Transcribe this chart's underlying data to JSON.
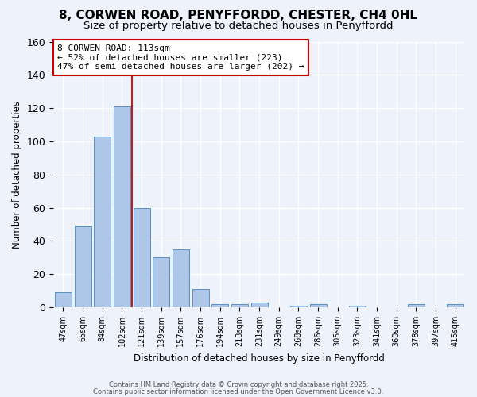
{
  "title1": "8, CORWEN ROAD, PENYFFORDD, CHESTER, CH4 0HL",
  "title2": "Size of property relative to detached houses in Penyffordd",
  "xlabel": "Distribution of detached houses by size in Penyffordd",
  "ylabel": "Number of detached properties",
  "bin_labels": [
    "47sqm",
    "65sqm",
    "84sqm",
    "102sqm",
    "121sqm",
    "139sqm",
    "157sqm",
    "176sqm",
    "194sqm",
    "213sqm",
    "231sqm",
    "249sqm",
    "268sqm",
    "286sqm",
    "305sqm",
    "323sqm",
    "341sqm",
    "360sqm",
    "378sqm",
    "397sqm",
    "415sqm"
  ],
  "bar_heights": [
    9,
    49,
    103,
    121,
    60,
    30,
    35,
    11,
    2,
    2,
    3,
    0,
    1,
    2,
    0,
    1,
    0,
    0,
    2,
    0,
    2
  ],
  "bar_color": "#aec6e8",
  "bar_edge_color": "#5a8fc0",
  "highlight_bin_index": 3,
  "highlight_line_color": "#cc0000",
  "annotation_text": "8 CORWEN ROAD: 113sqm\n← 52% of detached houses are smaller (223)\n47% of semi-detached houses are larger (202) →",
  "annotation_box_color": "#ffffff",
  "annotation_box_edge_color": "#cc0000",
  "footnote1": "Contains HM Land Registry data © Crown copyright and database right 2025.",
  "footnote2": "Contains public sector information licensed under the Open Government Licence v3.0.",
  "ylim": [
    0,
    160
  ],
  "background_color": "#eef2fb",
  "grid_color": "#ffffff",
  "title1_fontsize": 11,
  "title2_fontsize": 9.5
}
